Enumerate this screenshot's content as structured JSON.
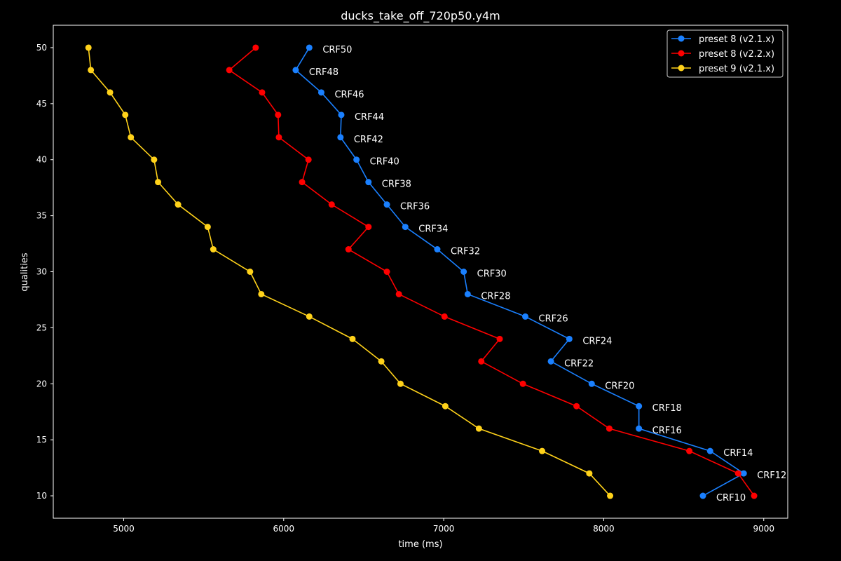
{
  "chart_data": {
    "type": "line",
    "title": "ducks_take_off_720p50.y4m",
    "xlabel": "time (ms)",
    "ylabel": "qualities",
    "xlim": [
      4560,
      9150
    ],
    "ylim": [
      8,
      52
    ],
    "xticks": [
      5000,
      6000,
      7000,
      8000,
      9000
    ],
    "yticks": [
      10,
      15,
      20,
      25,
      30,
      35,
      40,
      45,
      50
    ],
    "grid": false,
    "legend_position": "top-right",
    "series": [
      {
        "name": "preset 8 (v2.1.x)",
        "color": "#1a80ff",
        "y": [
          50,
          48,
          46,
          44,
          42,
          40,
          38,
          36,
          34,
          32,
          30,
          28,
          26,
          24,
          22,
          20,
          18,
          16,
          14,
          12,
          10
        ],
        "x": [
          6160,
          6075,
          6235,
          6360,
          6355,
          6455,
          6530,
          6645,
          6760,
          6960,
          7125,
          7150,
          7510,
          7785,
          7670,
          7925,
          8220,
          8220,
          8665,
          8875,
          8620
        ],
        "labels": [
          "CRF50",
          "CRF48",
          "CRF46",
          "CRF44",
          "CRF42",
          "CRF40",
          "CRF38",
          "CRF36",
          "CRF34",
          "CRF32",
          "CRF30",
          "CRF28",
          "CRF26",
          "CRF24",
          "CRF22",
          "CRF20",
          "CRF18",
          "CRF16",
          "CRF14",
          "CRF12",
          "CRF10"
        ]
      },
      {
        "name": "preset 8 (v2.2.x)",
        "color": "#ff0000",
        "y": [
          50,
          48,
          46,
          44,
          42,
          40,
          38,
          36,
          34,
          32,
          30,
          28,
          26,
          24,
          22,
          20,
          18,
          16,
          14,
          12,
          10
        ],
        "x": [
          5825,
          5660,
          5865,
          5965,
          5970,
          6155,
          6115,
          6300,
          6530,
          6405,
          6645,
          6720,
          7005,
          7350,
          7235,
          7495,
          7830,
          8035,
          8535,
          8840,
          8940
        ]
      },
      {
        "name": "preset 9 (v2.1.x)",
        "color": "#ffd21a",
        "y": [
          50,
          48,
          46,
          44,
          42,
          40,
          38,
          36,
          34,
          32,
          30,
          28,
          26,
          24,
          22,
          20,
          18,
          16,
          14,
          12,
          10
        ],
        "x": [
          4780,
          4795,
          4915,
          5010,
          5045,
          5190,
          5215,
          5340,
          5525,
          5560,
          5790,
          5860,
          6160,
          6430,
          6610,
          6730,
          7010,
          7220,
          7615,
          7910,
          8040
        ]
      }
    ]
  }
}
